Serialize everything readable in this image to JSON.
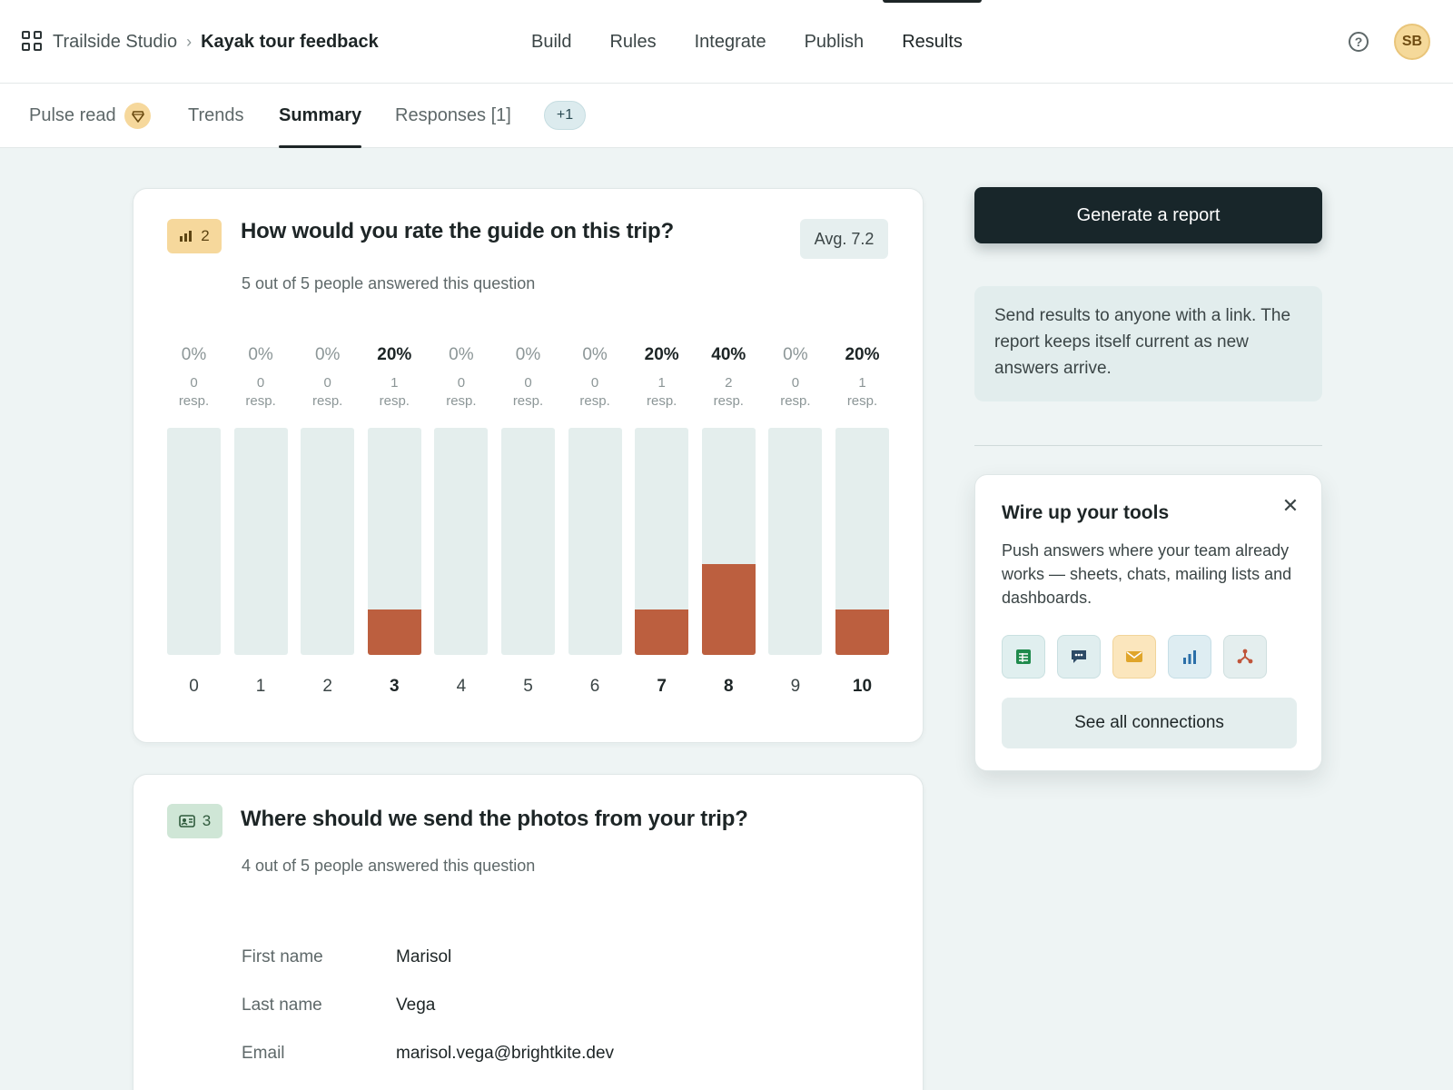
{
  "header": {
    "org_name": "Trailside Studio",
    "separator": "›",
    "project_name": "Kayak tour feedback",
    "nav": [
      "Build",
      "Rules",
      "Integrate",
      "Publish",
      "Results"
    ],
    "active_nav": "Results",
    "help_glyph": "?",
    "avatar_initials": "SB"
  },
  "subtabs": {
    "pulse_read": "Pulse read",
    "trends": "Trends",
    "summary": "Summary",
    "responses": "Responses [1]",
    "more_chip": "+1",
    "active": "Summary"
  },
  "question_rating": {
    "number": "2",
    "title": "How would you rate the guide on this trip?",
    "subtitle": "5 out of 5 people answered this question",
    "average": "Avg. 7.2"
  },
  "chart_data": {
    "type": "bar",
    "categories": [
      "0",
      "1",
      "2",
      "3",
      "4",
      "5",
      "6",
      "7",
      "8",
      "9",
      "10"
    ],
    "percent_labels": [
      "0%",
      "0%",
      "0%",
      "20%",
      "0%",
      "0%",
      "0%",
      "20%",
      "40%",
      "0%",
      "20%"
    ],
    "responses": [
      0,
      0,
      0,
      1,
      0,
      0,
      0,
      1,
      2,
      0,
      1
    ],
    "values": [
      0,
      0,
      0,
      20,
      0,
      0,
      0,
      20,
      40,
      0,
      20
    ],
    "count_suffix": "resp.",
    "ylim": [
      0,
      100
    ],
    "colors": {
      "fill": "#bc5f3f",
      "track": "#e4eeed"
    }
  },
  "question_contact": {
    "number": "3",
    "title": "Where should we send the photos from your trip?",
    "subtitle": "4 out of 5 people answered this question",
    "fields": [
      {
        "label": "First name",
        "value": "Marisol"
      },
      {
        "label": "Last name",
        "value": "Vega"
      },
      {
        "label": "Email",
        "value": "marisol.vega@brightkite.dev"
      }
    ]
  },
  "sidebar": {
    "generate_button": "Generate a report",
    "share_note": "Send results to anyone with a link. The report keeps itself current as new answers arrive.",
    "tools_title": "Wire up your tools",
    "tools_desc": "Push answers where your team already works — sheets, chats, mailing lists and dashboards.",
    "tools_close": "✕",
    "tools_icons": [
      "sheets-icon",
      "chat-icon",
      "mail-icon",
      "dashboard-icon",
      "webhook-icon"
    ],
    "see_all_button": "See all connections"
  },
  "colors": {
    "accent_dark": "#18262a",
    "bar_fill": "#bc5f3f",
    "rating_badge": "#f6d89c",
    "contact_badge": "#cfe6d6"
  }
}
